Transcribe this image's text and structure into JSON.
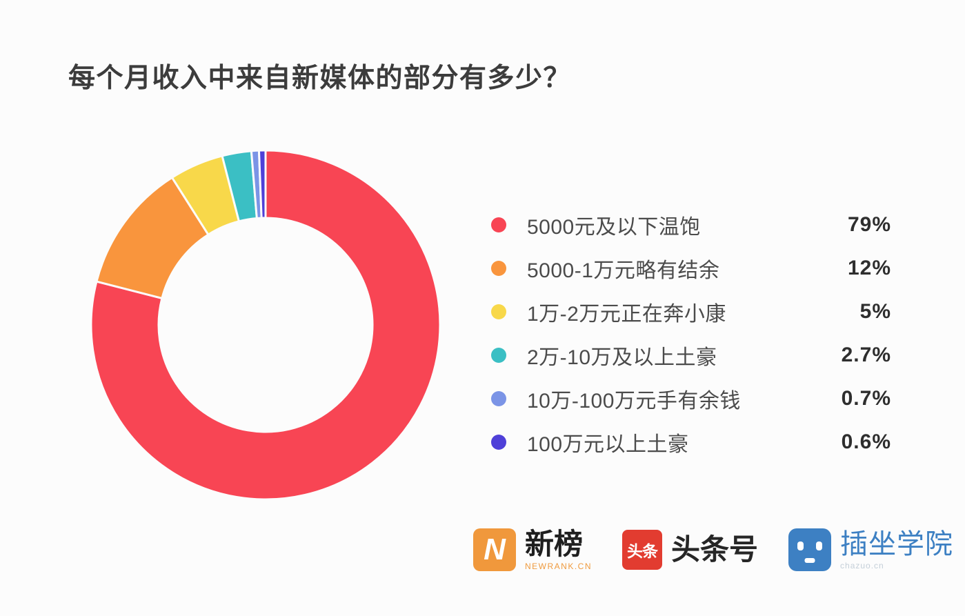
{
  "title": "每个月收入中来自新媒体的部分有多少？",
  "chart_data": {
    "type": "pie",
    "style": "donut",
    "title": "每个月收入中来自新媒体的部分有多少？",
    "unit": "%",
    "start_angle_deg_from_top": 0,
    "direction": "clockwise",
    "legend_position": "right",
    "background": "#FCFCFC",
    "categories": [
      "5000元及以下温饱",
      "5000-1万元略有结余",
      "1万-2万元正在奔小康",
      "2万-10万及以上土豪",
      "10万-100万元手有余钱",
      "100万元以上土豪"
    ],
    "values": [
      79,
      12,
      5,
      2.7,
      0.7,
      0.6
    ],
    "items": [
      {
        "label": "5000元及以下温饱",
        "value": 79,
        "percent_label": "79%",
        "color": "#F84554"
      },
      {
        "label": "5000-1万元略有结余",
        "value": 12,
        "percent_label": "12%",
        "color": "#F9953D"
      },
      {
        "label": "1万-2万元正在奔小康",
        "value": 5,
        "percent_label": "5%",
        "color": "#F8D84A"
      },
      {
        "label": "2万-10万及以上土豪",
        "value": 2.7,
        "percent_label": "2.7%",
        "color": "#3BBFC4"
      },
      {
        "label": "10万-100万元手有余钱",
        "value": 0.7,
        "percent_label": "0.7%",
        "color": "#7B94E6"
      },
      {
        "label": "100万元以上土豪",
        "value": 0.6,
        "percent_label": "0.6%",
        "color": "#4F40D8"
      }
    ]
  },
  "footer": {
    "logos": [
      {
        "name": "newrank",
        "icon_glyph": "N",
        "icon_color": "#F0983C",
        "title": "新榜",
        "subtitle": "NEWRANK.CN"
      },
      {
        "name": "toutiaohao",
        "icon_glyph": "头条",
        "icon_color": "#E23C30",
        "title": "头条号",
        "subtitle": ""
      },
      {
        "name": "chazuo",
        "icon_glyph": "",
        "icon_color": "#3D80C3",
        "title": "插坐学院",
        "subtitle": "chazuo.cn"
      }
    ]
  }
}
